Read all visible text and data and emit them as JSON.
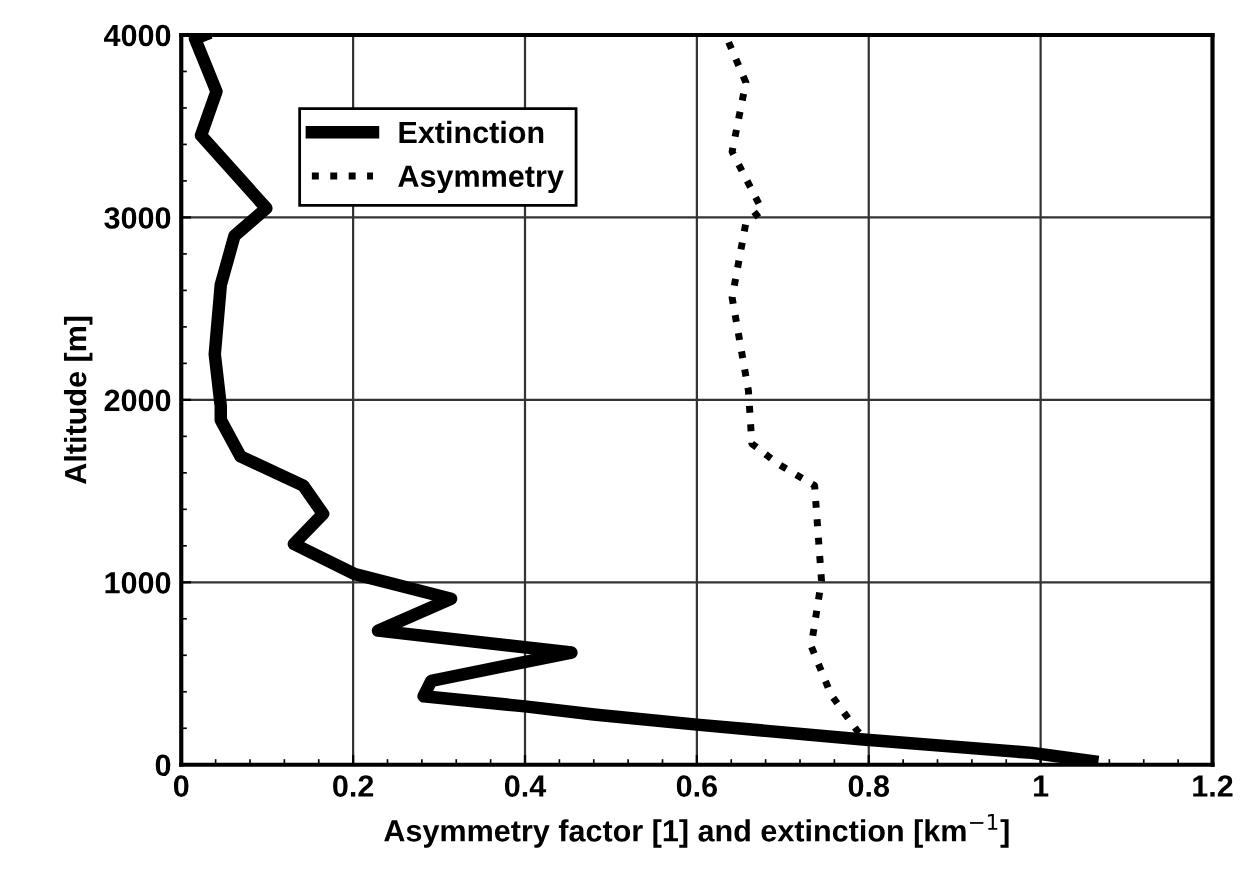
{
  "chart_data": {
    "type": "line",
    "xlabel": "Asymmetry factor [1] and extinction [km$^{−1}$]",
    "ylabel": "Altitude [m]",
    "xlim": [
      0,
      1.2
    ],
    "xticks": [
      0,
      0.2,
      0.4,
      0.6,
      0.8,
      1,
      1.2
    ],
    "ylim": [
      0,
      4000
    ],
    "yticks": [
      0,
      1000,
      2000,
      3000,
      4000
    ],
    "grid": true,
    "legend": "top left",
    "marker": "none",
    "series": [
      {
        "name": "Extinction",
        "color": "#000000",
        "line_style": "solid",
        "x": [
          0.027,
          0.016,
          0.041,
          0.023,
          0.099,
          0.062,
          0.046,
          0.039,
          0.046,
          0.046,
          0.069,
          0.142,
          0.165,
          0.131,
          0.202,
          0.314,
          0.229,
          0.454,
          0.291,
          0.282,
          0.4,
          0.48,
          0.6,
          0.79,
          0.99,
          1.06
        ],
        "values": [
          4000,
          3980,
          3690,
          3450,
          3050,
          2900,
          2630,
          2250,
          1965,
          1890,
          1690,
          1530,
          1375,
          1210,
          1045,
          910,
          735,
          615,
          460,
          375,
          320,
          275,
          220,
          140,
          65,
          20
        ]
      },
      {
        "name": "Asymmetry",
        "color": "#000000",
        "line_style": "dotted",
        "x": [
          0.637,
          0.657,
          0.641,
          0.676,
          0.657,
          0.641,
          0.66,
          0.664,
          0.694,
          0.737,
          0.745,
          0.733,
          0.756,
          0.786,
          0.79
        ],
        "values": [
          3960,
          3740,
          3360,
          3040,
          2970,
          2560,
          2050,
          1760,
          1650,
          1530,
          1010,
          650,
          385,
          190,
          170
        ]
      }
    ]
  }
}
